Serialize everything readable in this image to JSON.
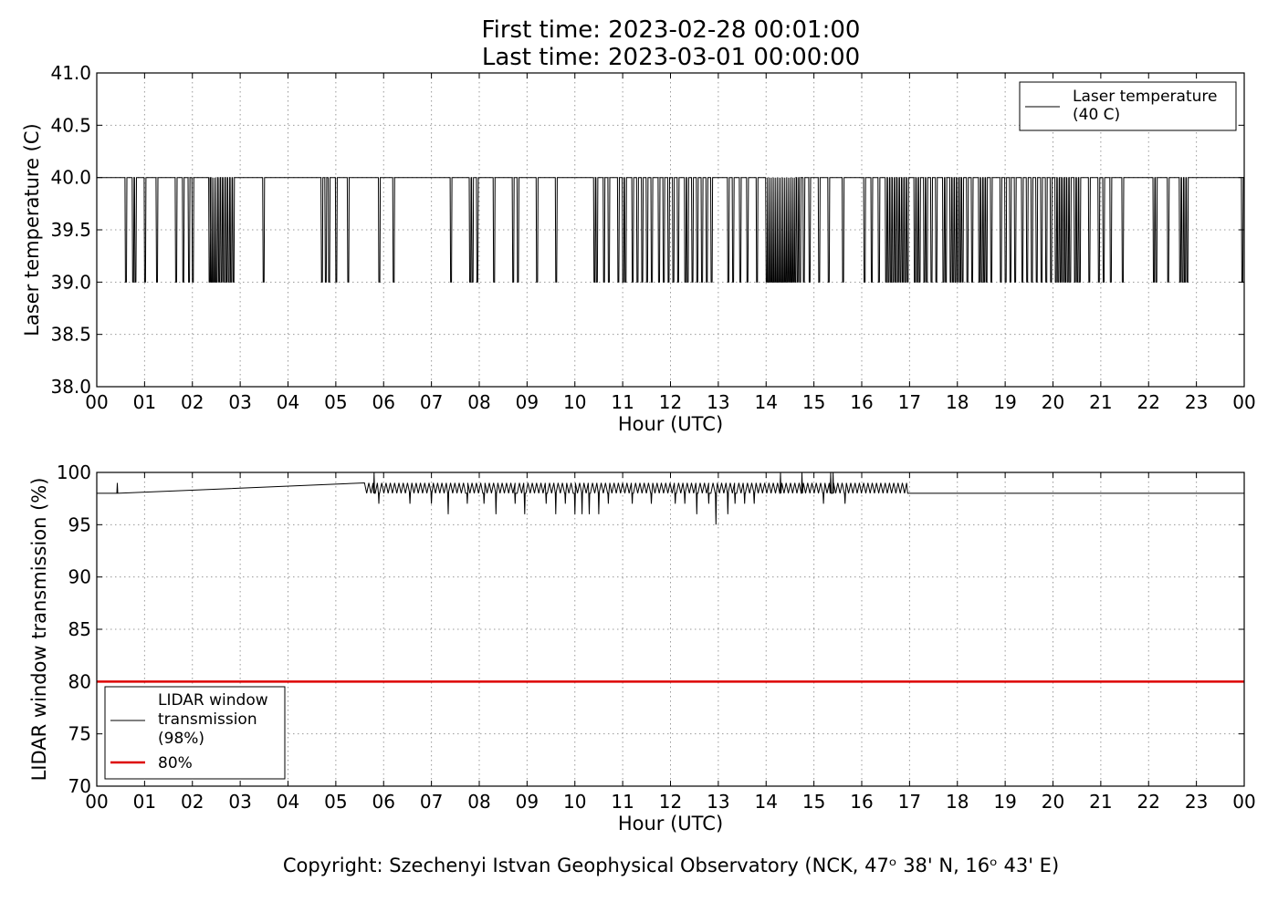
{
  "header": {
    "line1": "First time: 2023-02-28 00:01:00",
    "line2": "Last time: 2023-03-01 00:00:00"
  },
  "footer": {
    "copyright": "Copyright: Szechenyi Istvan Geophysical Observatory (NCK, 47ᵒ  38' N, 16ᵒ  43' E)"
  },
  "colors": {
    "line": "#000000",
    "threshold": "#dd0000",
    "grid": "#999999"
  },
  "chart_data": [
    {
      "type": "line",
      "xlabel": "Hour (UTC)",
      "ylabel": "Laser temperature (C)",
      "xlim": [
        0,
        24
      ],
      "ylim": [
        38.0,
        41.0
      ],
      "xticks": [
        "00",
        "01",
        "02",
        "03",
        "04",
        "05",
        "06",
        "07",
        "08",
        "09",
        "10",
        "11",
        "12",
        "13",
        "14",
        "15",
        "16",
        "17",
        "18",
        "19",
        "20",
        "21",
        "22",
        "23",
        "00"
      ],
      "yticks": [
        "38.0",
        "38.5",
        "39.0",
        "39.5",
        "40.0",
        "40.5",
        "41.0"
      ],
      "grid": true,
      "legend_position": "top-right",
      "series": [
        {
          "name": "Laser temperature\n(40 C)",
          "baseline": 40.0,
          "dip_value": 39.0,
          "dips_hours": [
            0.6,
            0.75,
            0.8,
            1.0,
            1.25,
            1.65,
            1.8,
            1.92,
            2.0,
            2.35,
            2.38,
            2.42,
            2.46,
            2.5,
            2.55,
            2.6,
            2.65,
            2.7,
            2.75,
            2.8,
            2.85,
            3.48,
            4.7,
            4.78,
            4.85,
            5.0,
            5.25,
            5.9,
            6.2,
            7.4,
            7.8,
            7.85,
            7.95,
            8.3,
            8.7,
            8.8,
            9.2,
            9.6,
            10.4,
            10.45,
            10.6,
            10.7,
            10.9,
            11.0,
            11.05,
            11.2,
            11.3,
            11.4,
            11.5,
            11.6,
            11.75,
            11.85,
            11.95,
            12.05,
            12.15,
            12.3,
            12.35,
            12.45,
            12.55,
            12.65,
            12.75,
            12.85,
            13.2,
            13.3,
            13.45,
            13.6,
            13.8,
            14.0,
            14.04,
            14.08,
            14.12,
            14.16,
            14.2,
            14.24,
            14.28,
            14.32,
            14.36,
            14.4,
            14.44,
            14.48,
            14.52,
            14.56,
            14.6,
            14.65,
            14.7,
            14.78,
            14.9,
            15.1,
            15.3,
            15.6,
            16.05,
            16.2,
            16.35,
            16.5,
            16.55,
            16.6,
            16.65,
            16.7,
            16.75,
            16.8,
            16.85,
            16.9,
            16.95,
            17.1,
            17.15,
            17.2,
            17.3,
            17.35,
            17.45,
            17.55,
            17.7,
            17.75,
            17.85,
            17.9,
            17.95,
            18.0,
            18.05,
            18.1,
            18.2,
            18.3,
            18.45,
            18.5,
            18.55,
            18.6,
            18.7,
            18.9,
            19.0,
            19.1,
            19.2,
            19.35,
            19.45,
            19.55,
            19.65,
            19.75,
            19.85,
            19.95,
            20.05,
            20.1,
            20.15,
            20.2,
            20.25,
            20.3,
            20.35,
            20.45,
            20.5,
            20.55,
            20.75,
            20.95,
            21.05,
            21.2,
            21.45,
            22.1,
            22.15,
            22.4,
            22.65,
            22.7,
            22.75,
            22.8,
            23.95
          ]
        }
      ]
    },
    {
      "type": "line",
      "xlabel": "Hour (UTC)",
      "ylabel": "LIDAR window transmission (%)",
      "xlim": [
        0,
        24
      ],
      "ylim": [
        70,
        100
      ],
      "xticks": [
        "00",
        "01",
        "02",
        "03",
        "04",
        "05",
        "06",
        "07",
        "08",
        "09",
        "10",
        "11",
        "12",
        "13",
        "14",
        "15",
        "16",
        "17",
        "18",
        "19",
        "20",
        "21",
        "22",
        "23",
        "00"
      ],
      "yticks": [
        "70",
        "75",
        "80",
        "85",
        "90",
        "95",
        "100"
      ],
      "grid": true,
      "legend_position": "bottom-left",
      "series": [
        {
          "name": "LIDAR window\ntransmission\n(98%)",
          "baseline": 98,
          "active_hours": [
            5.6,
            16.95
          ],
          "spikes": [
            [
              0.43,
              99
            ],
            [
              5.8,
              100
            ],
            [
              14.3,
              100
            ],
            [
              14.75,
              100
            ],
            [
              15.35,
              100
            ],
            [
              15.4,
              100
            ]
          ],
          "dips": [
            [
              5.9,
              97
            ],
            [
              6.55,
              97
            ],
            [
              7.0,
              97
            ],
            [
              7.35,
              96
            ],
            [
              7.75,
              97
            ],
            [
              8.1,
              97
            ],
            [
              8.35,
              96
            ],
            [
              8.75,
              97
            ],
            [
              8.95,
              96
            ],
            [
              9.4,
              97
            ],
            [
              9.6,
              96
            ],
            [
              9.8,
              97
            ],
            [
              10.0,
              96
            ],
            [
              10.15,
              96
            ],
            [
              10.3,
              96
            ],
            [
              10.5,
              96
            ],
            [
              10.7,
              97
            ],
            [
              11.2,
              97
            ],
            [
              11.6,
              97
            ],
            [
              12.1,
              97
            ],
            [
              12.3,
              97
            ],
            [
              12.55,
              96
            ],
            [
              12.8,
              97
            ],
            [
              12.95,
              95
            ],
            [
              13.2,
              96
            ],
            [
              13.35,
              97
            ],
            [
              13.55,
              97
            ],
            [
              13.75,
              97
            ],
            [
              15.2,
              97
            ],
            [
              15.65,
              97
            ]
          ],
          "active_high": 99
        },
        {
          "name": "80%",
          "value": 80
        }
      ]
    }
  ]
}
